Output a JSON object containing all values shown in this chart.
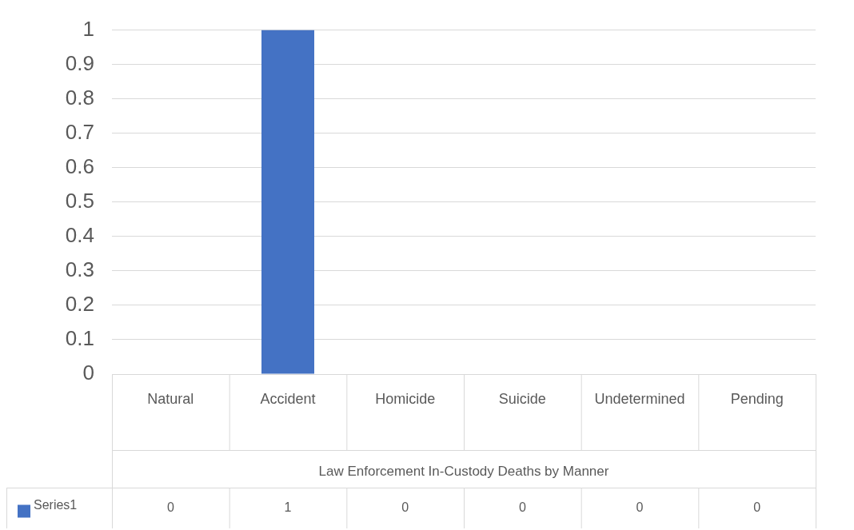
{
  "chart_data": {
    "type": "bar",
    "xlabel": "Law Enforcement In-Custody Deaths by Manner",
    "categories": [
      "Natural",
      "Accident",
      "Homicide",
      "Suicide",
      "Undetermined",
      "Pending"
    ],
    "series": [
      {
        "name": "Series1",
        "color": "#4472c4",
        "values": [
          0,
          1,
          0,
          0,
          0,
          0
        ]
      }
    ],
    "ylim": [
      0,
      1
    ],
    "yticks": [
      0,
      0.1,
      0.2,
      0.3,
      0.4,
      0.5,
      0.6,
      0.7,
      0.8,
      0.9,
      1
    ],
    "grid": "y",
    "legend": "bottom",
    "data_labels": true
  }
}
